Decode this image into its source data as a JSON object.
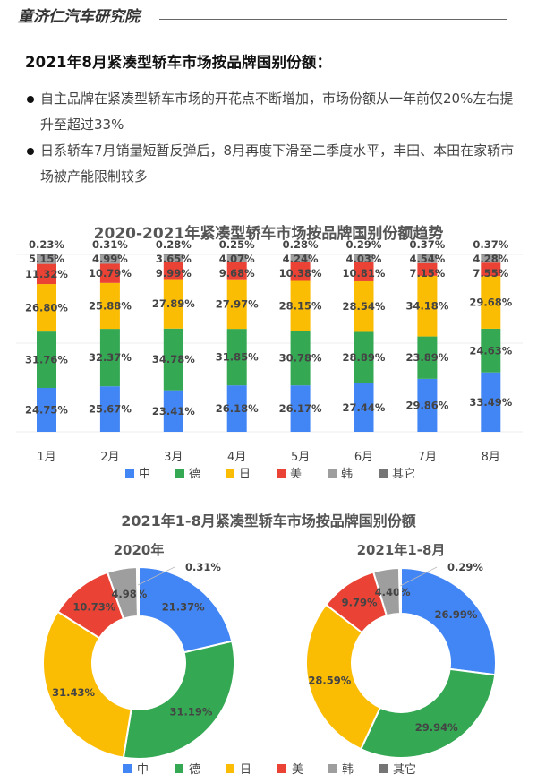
{
  "header": {
    "brand": "童济仁汽车研究院"
  },
  "article": {
    "heading": "2021年8月紧凑型轿车市场按品牌国别份额：",
    "bullets": [
      "自主品牌在紧凑型轿车市场的开花点不断增加，市场份额从一年前仅20%左右提升至超过33%",
      "日系轿车7月销量短暂反弹后，8月再度下滑至二季度水平，丰田、本田在家轿市场被产能限制较多"
    ]
  },
  "colors": {
    "中": "#4285F4",
    "德": "#34A853",
    "日": "#FBBC04",
    "美": "#EA4335",
    "韩": "#9E9E9E",
    "其它": "#757575"
  },
  "chart_data": [
    {
      "type": "bar",
      "stacked": true,
      "title": "2020-2021年紧凑型轿车市场按品牌国别份额趋势",
      "xlabel": "",
      "ylabel": "",
      "ylim": [
        0,
        100
      ],
      "grid": true,
      "legend_position": "bottom",
      "categories": [
        "1月",
        "2月",
        "3月",
        "4月",
        "5月",
        "6月",
        "7月",
        "8月"
      ],
      "series": [
        {
          "name": "中",
          "values": [
            24.75,
            25.67,
            23.41,
            26.18,
            26.17,
            27.44,
            29.86,
            33.49
          ]
        },
        {
          "name": "德",
          "values": [
            31.76,
            32.37,
            34.78,
            31.85,
            30.78,
            28.89,
            23.89,
            24.63
          ]
        },
        {
          "name": "日",
          "values": [
            26.8,
            25.88,
            27.89,
            27.97,
            28.15,
            28.54,
            34.18,
            29.68
          ]
        },
        {
          "name": "美",
          "values": [
            11.32,
            10.79,
            9.99,
            9.68,
            10.38,
            10.81,
            7.15,
            7.55
          ]
        },
        {
          "name": "韩",
          "values": [
            5.15,
            4.99,
            3.65,
            4.07,
            4.24,
            4.03,
            4.54,
            4.28
          ]
        },
        {
          "name": "其它",
          "values": [
            0.23,
            0.31,
            0.28,
            0.25,
            0.28,
            0.29,
            0.37,
            0.37
          ]
        }
      ]
    },
    {
      "type": "pie",
      "donut": true,
      "title": "2021年1-8月紧凑型轿车市场按品牌国别份额",
      "subtitle": "2020年",
      "legend_position": "bottom",
      "categories": [
        "中",
        "德",
        "日",
        "美",
        "韩",
        "其它"
      ],
      "values": [
        21.37,
        31.19,
        31.43,
        10.73,
        4.98,
        0.31
      ]
    },
    {
      "type": "pie",
      "donut": true,
      "title": "2021年1-8月紧凑型轿车市场按品牌国别份额",
      "subtitle": "2021年1-8月",
      "legend_position": "bottom",
      "categories": [
        "中",
        "德",
        "日",
        "美",
        "韩",
        "其它"
      ],
      "values": [
        26.99,
        29.94,
        28.59,
        9.79,
        4.4,
        0.29
      ]
    }
  ],
  "legend": [
    "中",
    "德",
    "日",
    "美",
    "韩",
    "其它"
  ]
}
